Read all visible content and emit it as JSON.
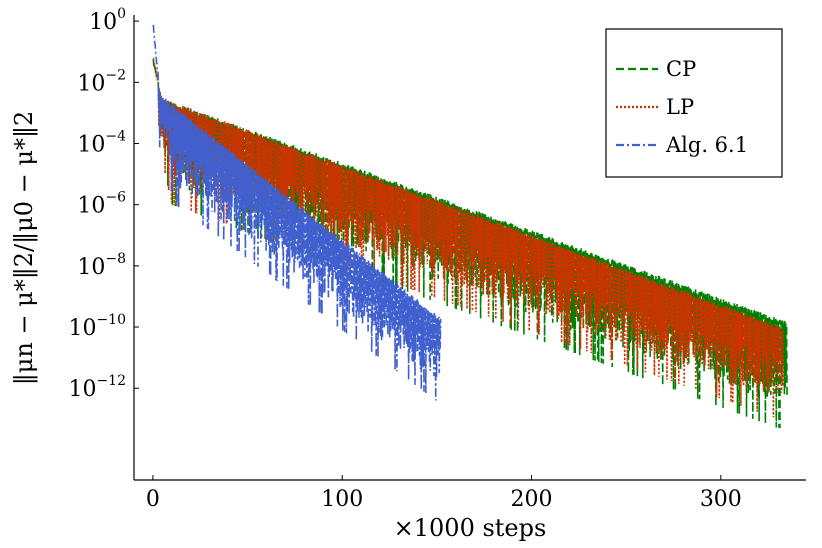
{
  "chart_data": {
    "type": "line",
    "title": "",
    "xlabel": "×1000 steps",
    "ylabel": "‖μn − μ*‖2/‖μ0 − μ*‖2",
    "xlim": [
      -10,
      345
    ],
    "ylim_log10": [
      -15,
      0.2
    ],
    "y_scale": "log",
    "grid": false,
    "x_ticks": [
      0,
      100,
      200,
      300
    ],
    "y_ticks": [
      {
        "base": "10",
        "exp": "0",
        "value": 0
      },
      {
        "base": "10",
        "exp": "−2",
        "value": -2
      },
      {
        "base": "10",
        "exp": "−4",
        "value": -4
      },
      {
        "base": "10",
        "exp": "−6",
        "value": -6
      },
      {
        "base": "10",
        "exp": "−8",
        "value": -8
      },
      {
        "base": "10",
        "exp": "−10",
        "value": -10
      },
      {
        "base": "10",
        "exp": "−12",
        "value": -12
      }
    ],
    "legend_position": "top-right",
    "series": [
      {
        "name": "CP",
        "color": "#008000",
        "style": "dashed",
        "upper_envelope": [
          [
            0,
            0.0631
          ],
          [
            3,
            0.01
          ],
          [
            5,
            0.003
          ],
          [
            335,
            1.5e-10
          ]
        ],
        "lower_envelope": [
          [
            3,
            0.0001
          ],
          [
            10,
            1e-06
          ],
          [
            330,
            5e-14
          ]
        ],
        "x_end": 335
      },
      {
        "name": "LP",
        "color": "#cc3300",
        "style": "dotted",
        "upper_envelope": [
          [
            0,
            0.0631
          ],
          [
            3,
            0.01
          ],
          [
            5,
            0.003
          ],
          [
            333,
            1e-10
          ]
        ],
        "lower_envelope": [
          [
            3,
            0.0001
          ],
          [
            10,
            1e-06
          ],
          [
            330,
            1e-13
          ]
        ],
        "x_end": 333
      },
      {
        "name": "Alg. 6.1",
        "color": "#4060d0",
        "style": "dash-dot",
        "upper_envelope": [
          [
            0,
            1.0
          ],
          [
            2,
            0.05
          ],
          [
            4,
            0.004
          ],
          [
            152,
            2e-10
          ]
        ],
        "lower_envelope": [
          [
            3,
            0.0001
          ],
          [
            12,
            1e-06
          ],
          [
            152,
            3e-13
          ]
        ],
        "x_end": 152
      }
    ]
  }
}
